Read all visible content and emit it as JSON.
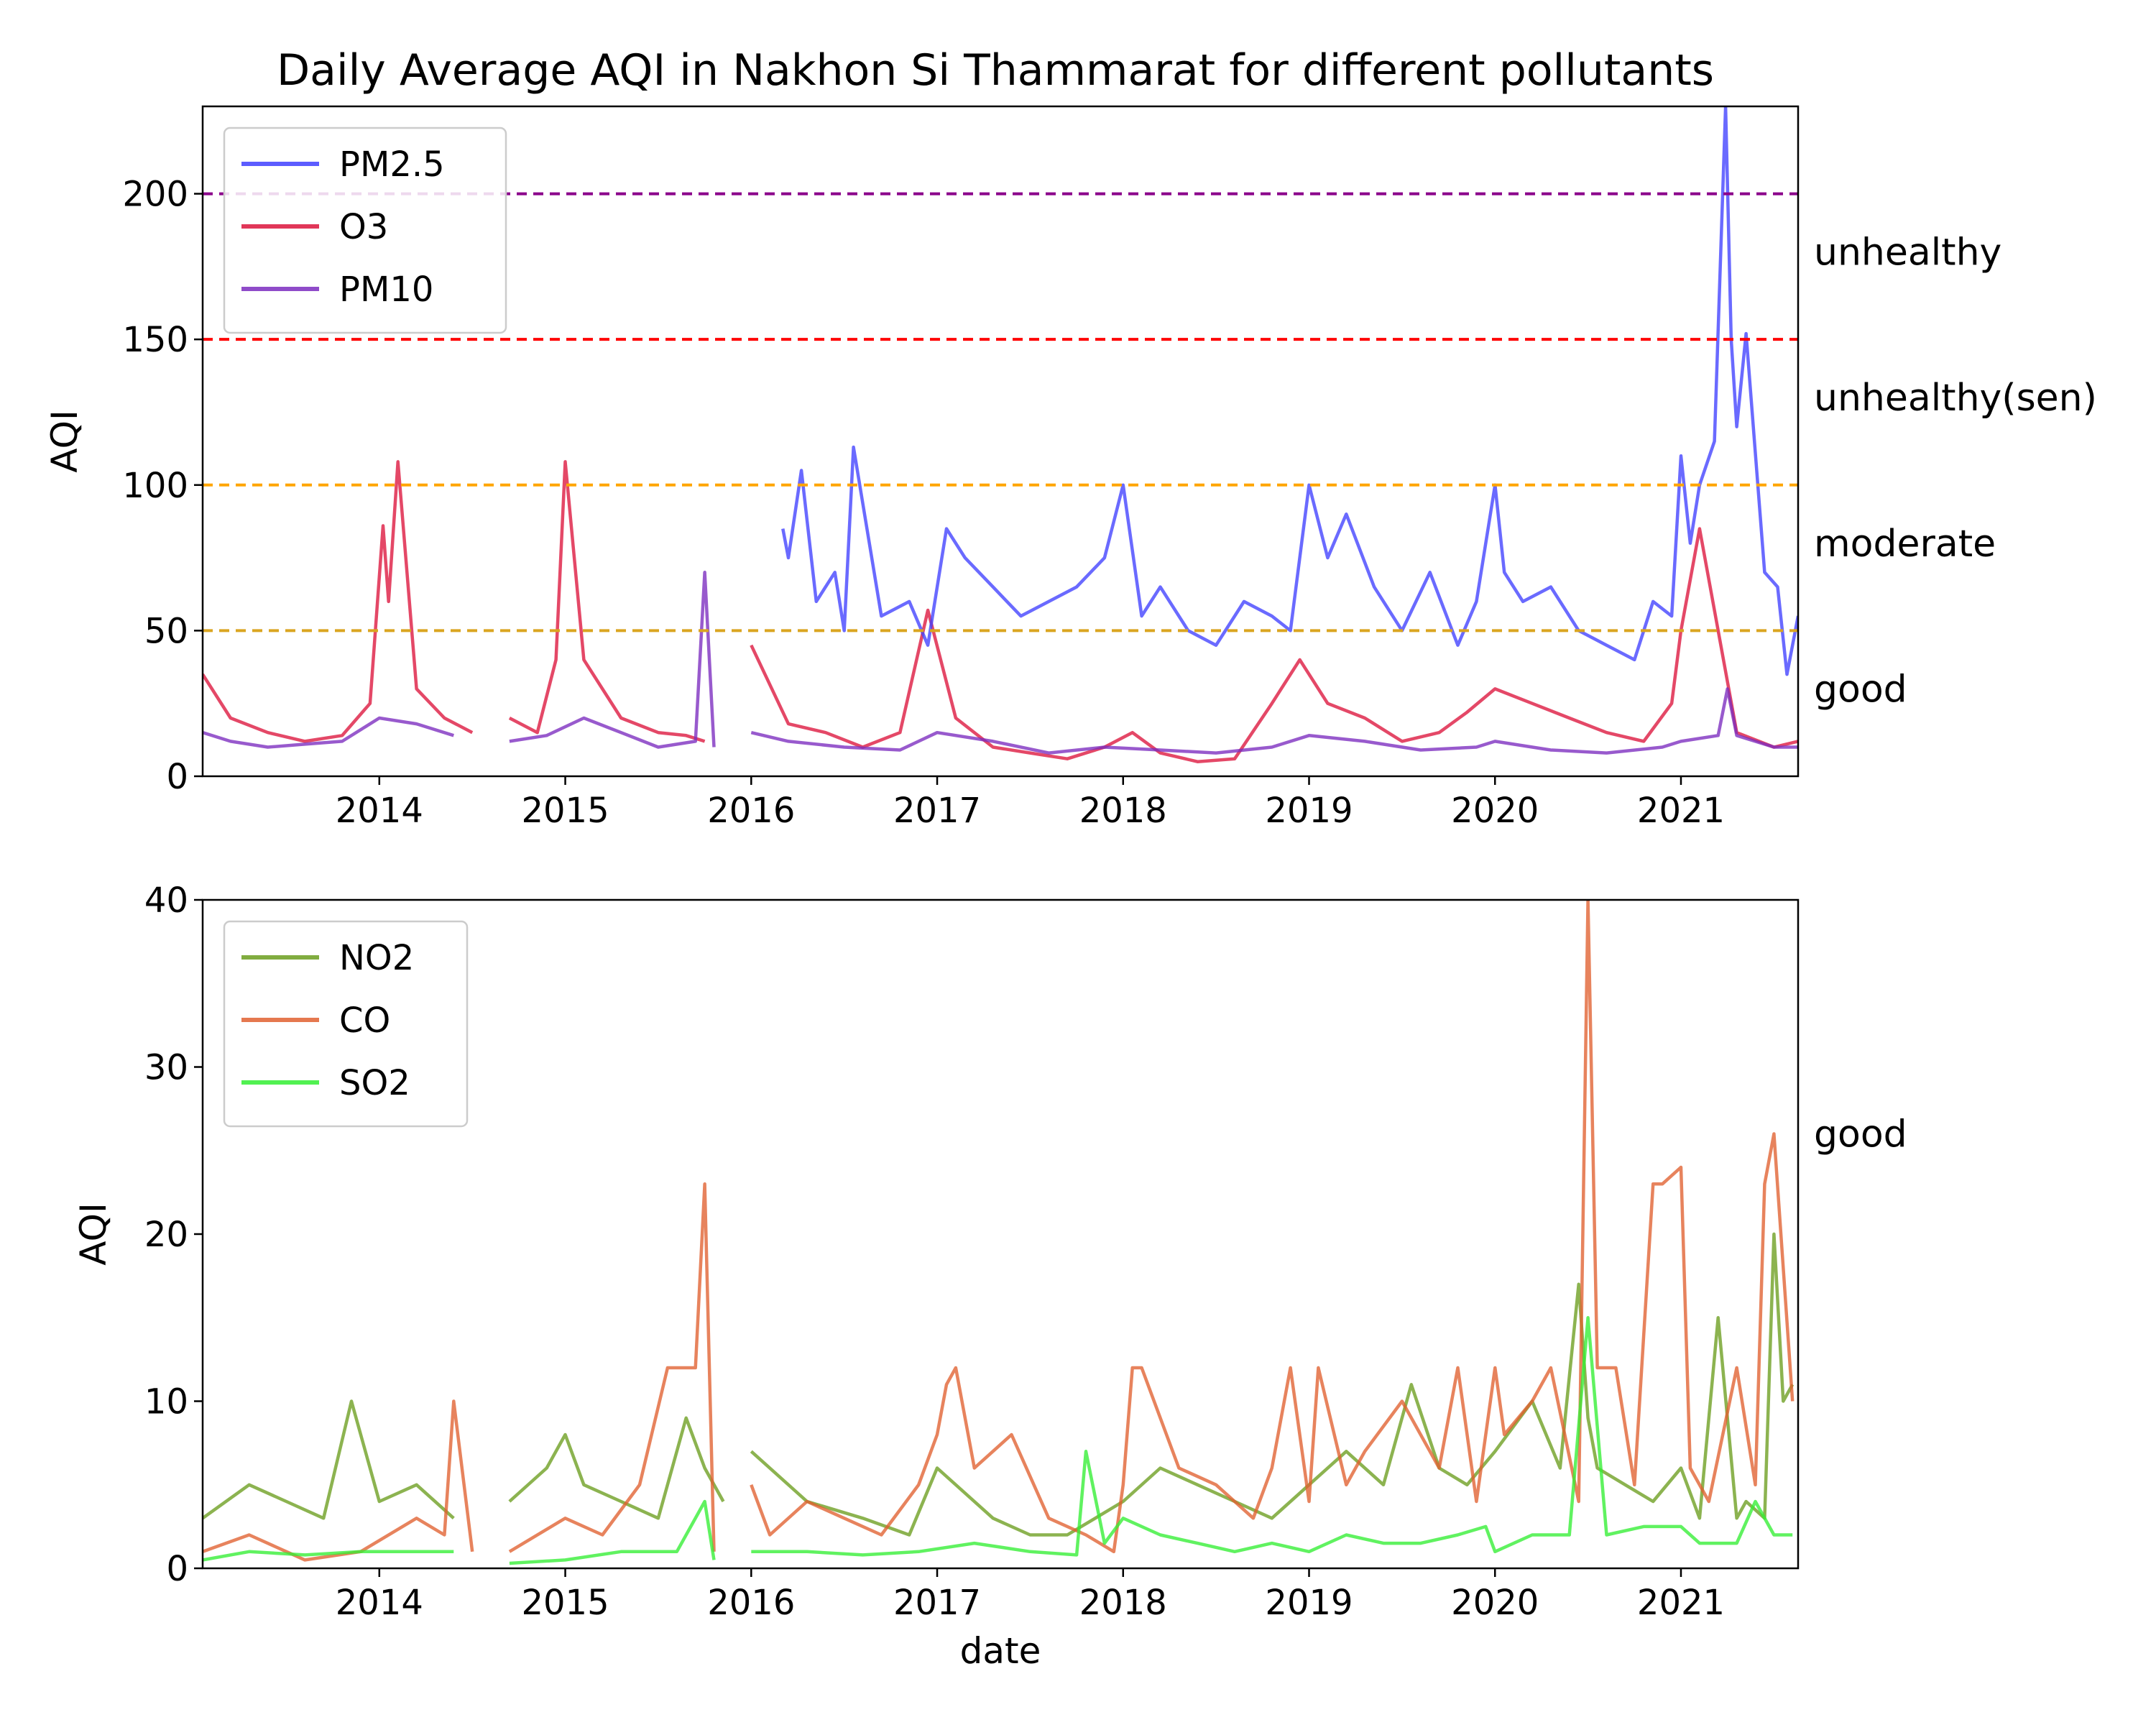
{
  "title": "Daily Average AQI in Nakhon Si Thammarat for different pollutants",
  "chart_data": [
    {
      "type": "line",
      "xlabel": "",
      "ylabel": "AQI",
      "xlim": [
        2013.05,
        2021.63
      ],
      "ylim": [
        0,
        230
      ],
      "x_ticks": [
        2014,
        2015,
        2016,
        2017,
        2018,
        2019,
        2020,
        2021
      ],
      "y_ticks": [
        0,
        50,
        100,
        150,
        200
      ],
      "grid": false,
      "legend_position": "upper-left",
      "thresholds": [
        {
          "value": 200,
          "color": "#8b008b"
        },
        {
          "value": 150,
          "color": "#ff0000"
        },
        {
          "value": 100,
          "color": "#ffa500"
        },
        {
          "value": 50,
          "color": "#daa520"
        }
      ],
      "zone_labels": [
        {
          "label": "unhealthy",
          "value": 180
        },
        {
          "label": "unhealthy(sen)",
          "value": 130
        },
        {
          "label": "moderate",
          "value": 80
        },
        {
          "label": "good",
          "value": 30
        }
      ],
      "series": [
        {
          "name": "O3",
          "color": "#dc143c",
          "x": [
            2013.05,
            2013.2,
            2013.4,
            2013.6,
            2013.8,
            2013.95,
            2014.02,
            2014.05,
            2014.1,
            2014.2,
            2014.35,
            2014.5,
            2014.55,
            2014.7,
            2014.85,
            2014.95,
            2015.0,
            2015.1,
            2015.3,
            2015.5,
            2015.65,
            2015.75,
            2015.95,
            2016.0,
            2016.2,
            2016.4,
            2016.6,
            2016.8,
            2016.95,
            2017.1,
            2017.3,
            2017.5,
            2017.7,
            2017.9,
            2018.05,
            2018.2,
            2018.4,
            2018.6,
            2018.8,
            2018.95,
            2019.1,
            2019.3,
            2019.5,
            2019.7,
            2019.85,
            2020.0,
            2020.2,
            2020.4,
            2020.6,
            2020.8,
            2020.95,
            2021.0,
            2021.1,
            2021.3,
            2021.5,
            2021.63
          ],
          "y": [
            35,
            20,
            15,
            12,
            14,
            25,
            86,
            60,
            108,
            30,
            20,
            15,
            null,
            20,
            15,
            40,
            108,
            40,
            20,
            15,
            14,
            12,
            null,
            45,
            18,
            15,
            10,
            15,
            57,
            20,
            10,
            8,
            6,
            10,
            15,
            8,
            5,
            6,
            25,
            40,
            25,
            20,
            12,
            15,
            22,
            30,
            25,
            20,
            15,
            12,
            25,
            50,
            85,
            15,
            10,
            12
          ]
        },
        {
          "name": "PM10",
          "color": "#7b2cbf",
          "x": [
            2013.05,
            2013.2,
            2013.4,
            2013.6,
            2013.8,
            2014.0,
            2014.2,
            2014.4,
            2014.55,
            2014.7,
            2014.9,
            2015.1,
            2015.3,
            2015.5,
            2015.7,
            2015.75,
            2015.8,
            2015.95,
            2016.0,
            2016.2,
            2016.5,
            2016.8,
            2017.0,
            2017.3,
            2017.6,
            2017.9,
            2018.2,
            2018.5,
            2018.8,
            2019.0,
            2019.3,
            2019.6,
            2019.9,
            2020.0,
            2020.3,
            2020.6,
            2020.9,
            2021.0,
            2021.2,
            2021.25,
            2021.3,
            2021.5,
            2021.63
          ],
          "y": [
            15,
            12,
            10,
            11,
            12,
            20,
            18,
            14,
            null,
            12,
            14,
            20,
            15,
            10,
            12,
            70,
            10,
            null,
            15,
            12,
            10,
            9,
            15,
            12,
            8,
            10,
            9,
            8,
            10,
            14,
            12,
            9,
            10,
            12,
            9,
            8,
            10,
            12,
            14,
            30,
            14,
            10,
            10
          ]
        },
        {
          "name": "PM2.5",
          "color": "#4040ff",
          "x": [
            2016.17,
            2016.2,
            2016.27,
            2016.35,
            2016.45,
            2016.5,
            2016.55,
            2016.7,
            2016.85,
            2016.95,
            2017.05,
            2017.15,
            2017.3,
            2017.45,
            2017.6,
            2017.75,
            2017.9,
            2018.0,
            2018.1,
            2018.2,
            2018.35,
            2018.5,
            2018.65,
            2018.8,
            2018.9,
            2019.0,
            2019.1,
            2019.2,
            2019.35,
            2019.5,
            2019.65,
            2019.8,
            2019.9,
            2020.0,
            2020.05,
            2020.15,
            2020.3,
            2020.45,
            2020.6,
            2020.75,
            2020.85,
            2020.95,
            2021.0,
            2021.05,
            2021.1,
            2021.18,
            2021.24,
            2021.27,
            2021.3,
            2021.35,
            2021.45,
            2021.52,
            2021.57,
            2021.63
          ],
          "y": [
            85,
            75,
            105,
            60,
            70,
            50,
            113,
            55,
            60,
            45,
            85,
            75,
            65,
            55,
            60,
            65,
            75,
            100,
            55,
            65,
            50,
            45,
            60,
            55,
            50,
            100,
            75,
            90,
            65,
            50,
            70,
            45,
            60,
            100,
            70,
            60,
            65,
            50,
            45,
            40,
            60,
            55,
            110,
            80,
            100,
            115,
            230,
            150,
            120,
            152,
            70,
            65,
            35,
            55
          ]
        }
      ]
    },
    {
      "type": "line",
      "xlabel": "date",
      "ylabel": "AQI",
      "xlim": [
        2013.05,
        2021.63
      ],
      "ylim": [
        0,
        40
      ],
      "x_ticks": [
        2014,
        2015,
        2016,
        2017,
        2018,
        2019,
        2020,
        2021
      ],
      "y_ticks": [
        0,
        10,
        20,
        30,
        40
      ],
      "grid": false,
      "legend_position": "upper-left",
      "zone_labels": [
        {
          "label": "good",
          "value": 26
        }
      ],
      "series": [
        {
          "name": "NO2",
          "color": "#6b9e1f",
          "x": [
            2013.05,
            2013.3,
            2013.5,
            2013.7,
            2013.85,
            2014.0,
            2014.2,
            2014.4,
            2014.55,
            2014.7,
            2014.9,
            2015.0,
            2015.1,
            2015.3,
            2015.5,
            2015.65,
            2015.75,
            2015.85,
            2015.95,
            2016.0,
            2016.3,
            2016.6,
            2016.85,
            2017.0,
            2017.3,
            2017.5,
            2017.7,
            2017.85,
            2018.0,
            2018.2,
            2018.4,
            2018.6,
            2018.8,
            2019.0,
            2019.2,
            2019.4,
            2019.55,
            2019.7,
            2019.85,
            2020.0,
            2020.2,
            2020.35,
            2020.45,
            2020.5,
            2020.55,
            2020.7,
            2020.85,
            2021.0,
            2021.1,
            2021.2,
            2021.3,
            2021.35,
            2021.45,
            2021.5,
            2021.55,
            2021.6
          ],
          "y": [
            3,
            5,
            4,
            3,
            10,
            4,
            5,
            3,
            null,
            4,
            6,
            8,
            5,
            4,
            3,
            9,
            6,
            4,
            null,
            7,
            4,
            3,
            2,
            6,
            3,
            2,
            2,
            3,
            4,
            6,
            5,
            4,
            3,
            5,
            7,
            5,
            11,
            6,
            5,
            7,
            10,
            6,
            17,
            9,
            6,
            5,
            4,
            6,
            3,
            15,
            3,
            4,
            3,
            20,
            10,
            11
          ]
        },
        {
          "name": "CO",
          "color": "#e06030",
          "x": [
            2013.05,
            2013.3,
            2013.6,
            2013.9,
            2014.2,
            2014.35,
            2014.4,
            2014.5,
            2014.55,
            2014.7,
            2015.0,
            2015.2,
            2015.4,
            2015.55,
            2015.6,
            2015.7,
            2015.75,
            2015.8,
            2015.95,
            2016.0,
            2016.1,
            2016.3,
            2016.5,
            2016.7,
            2016.9,
            2017.0,
            2017.05,
            2017.1,
            2017.2,
            2017.4,
            2017.6,
            2017.8,
            2017.95,
            2018.0,
            2018.05,
            2018.1,
            2018.3,
            2018.5,
            2018.7,
            2018.8,
            2018.9,
            2019.0,
            2019.05,
            2019.2,
            2019.3,
            2019.5,
            2019.7,
            2019.8,
            2019.9,
            2020.0,
            2020.05,
            2020.2,
            2020.3,
            2020.45,
            2020.5,
            2020.55,
            2020.65,
            2020.75,
            2020.85,
            2020.9,
            2021.0,
            2021.05,
            2021.15,
            2021.3,
            2021.4,
            2021.45,
            2021.5,
            2021.6
          ],
          "y": [
            1,
            2,
            0.5,
            1,
            3,
            2,
            10,
            1,
            null,
            1,
            3,
            2,
            5,
            12,
            12,
            12,
            23,
            1,
            null,
            5,
            2,
            4,
            3,
            2,
            5,
            8,
            11,
            12,
            6,
            8,
            3,
            2,
            1,
            5,
            12,
            12,
            6,
            5,
            3,
            6,
            12,
            4,
            12,
            5,
            7,
            10,
            6,
            12,
            4,
            12,
            8,
            10,
            12,
            4,
            40,
            12,
            12,
            5,
            23,
            23,
            24,
            6,
            4,
            12,
            5,
            23,
            26,
            10
          ]
        },
        {
          "name": "SO2",
          "color": "#33ee33",
          "x": [
            2013.05,
            2013.3,
            2013.6,
            2013.9,
            2014.2,
            2014.4,
            2014.55,
            2014.7,
            2015.0,
            2015.3,
            2015.6,
            2015.75,
            2015.8,
            2015.95,
            2016.0,
            2016.3,
            2016.6,
            2016.9,
            2017.2,
            2017.5,
            2017.75,
            2017.8,
            2017.9,
            2018.0,
            2018.2,
            2018.4,
            2018.6,
            2018.8,
            2019.0,
            2019.2,
            2019.4,
            2019.6,
            2019.8,
            2019.95,
            2020.0,
            2020.2,
            2020.4,
            2020.5,
            2020.6,
            2020.8,
            2021.0,
            2021.1,
            2021.3,
            2021.4,
            2021.5,
            2021.6
          ],
          "y": [
            0.5,
            1,
            0.8,
            1,
            1,
            1,
            null,
            0.3,
            0.5,
            1,
            1,
            4,
            0.5,
            null,
            1,
            1,
            0.8,
            1,
            1.5,
            1,
            0.8,
            7,
            1.5,
            3,
            2,
            1.5,
            1,
            1.5,
            1,
            2,
            1.5,
            1.5,
            2,
            2.5,
            1,
            2,
            2,
            15,
            2,
            2.5,
            2.5,
            1.5,
            1.5,
            4,
            2,
            2
          ]
        }
      ]
    }
  ]
}
